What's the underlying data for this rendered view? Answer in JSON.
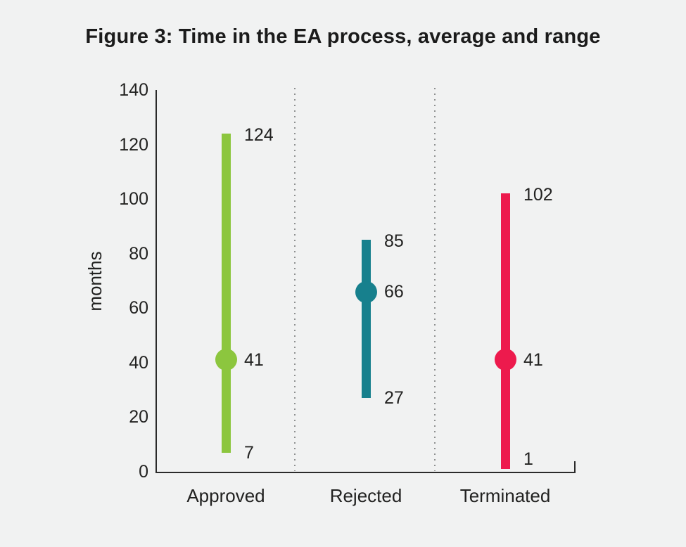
{
  "chart_data": {
    "type": "range-bar",
    "title": "Figure 3: Time in the EA process, average and range",
    "ylabel": "months",
    "xlabel": "",
    "ylim": [
      0,
      140
    ],
    "yticks": [
      0,
      20,
      40,
      60,
      80,
      100,
      120,
      140
    ],
    "grid": "off",
    "legend": "none",
    "categories": [
      "Approved",
      "Rejected",
      "Terminated"
    ],
    "series": [
      {
        "name": "Approved",
        "min": 7,
        "max": 124,
        "average": 41,
        "color": "#8cc63e"
      },
      {
        "name": "Rejected",
        "min": 27,
        "max": 85,
        "average": 66,
        "color": "#17808d"
      },
      {
        "name": "Terminated",
        "min": 1,
        "max": 102,
        "average": 41,
        "color": "#ed1a4d"
      }
    ],
    "value_labels_shown": [
      "max",
      "average",
      "min"
    ],
    "colors": {
      "background": "#f1f2f2",
      "axis": "#2b2b2b",
      "text": "#222221",
      "separator_dots": "#8e9090"
    }
  }
}
